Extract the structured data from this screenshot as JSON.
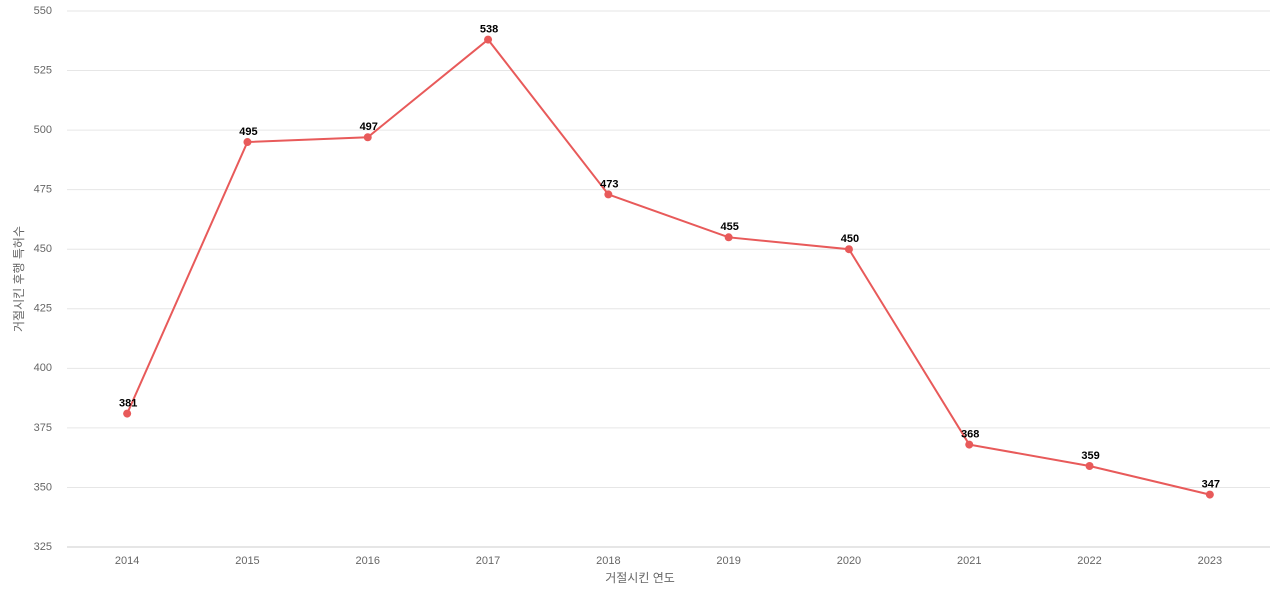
{
  "chart_data": {
    "type": "line",
    "x_label": "거절시킨 연도",
    "y_label": "거절시킨 후행 특허수",
    "categories": [
      "2014",
      "2015",
      "2016",
      "2017",
      "2018",
      "2019",
      "2020",
      "2021",
      "2022",
      "2023"
    ],
    "series": [
      {
        "color": "#e85a5a",
        "values": [
          381,
          495,
          497,
          538,
          473,
          455,
          450,
          368,
          359,
          347
        ]
      }
    ],
    "ylim": [
      325,
      550
    ],
    "yticks": [
      325,
      350,
      375,
      400,
      425,
      450,
      475,
      500,
      525,
      550
    ],
    "grid": true
  }
}
